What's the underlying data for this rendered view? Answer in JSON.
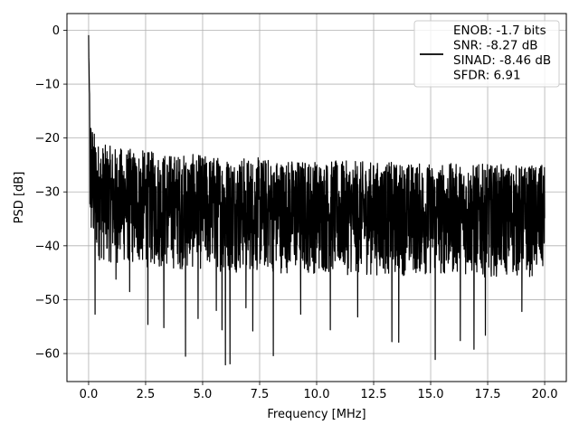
{
  "chart_data": {
    "type": "line",
    "xlabel": "Frequency [MHz]",
    "ylabel": "PSD [dB]",
    "xlim": [
      -0.95,
      20.95
    ],
    "ylim": [
      -65.2,
      3.1
    ],
    "xticks": [
      0.0,
      2.5,
      5.0,
      7.5,
      10.0,
      12.5,
      15.0,
      17.5,
      20.0
    ],
    "xtick_labels": [
      "0.0",
      "2.5",
      "5.0",
      "7.5",
      "10.0",
      "12.5",
      "15.0",
      "17.5",
      "20.0"
    ],
    "yticks": [
      0,
      -10,
      -20,
      -30,
      -40,
      -50,
      -60
    ],
    "ytick_labels": [
      "0",
      "−10",
      "−20",
      "−30",
      "−40",
      "−50",
      "−60"
    ],
    "grid": true,
    "line_color": "#000000",
    "legend": {
      "placement": "top-right",
      "entries": [
        "ENOB: -1.7 bits",
        "SNR: -8.27 dB",
        "SINAD: -8.46 dB",
        "SFDR: 6.91"
      ]
    },
    "series": [
      {
        "x_range": [
          0,
          20
        ],
        "x": [
          0.0,
          0.02,
          0.05,
          0.1,
          0.15,
          0.2,
          0.3,
          0.4,
          0.5,
          1.0,
          1.5,
          2.0,
          2.5,
          3.0,
          4.0,
          5.0,
          6.0,
          7.0,
          8.0,
          9.0,
          10.0,
          11.0,
          12.0,
          13.0,
          14.0,
          15.0,
          16.0,
          17.0,
          18.0,
          19.0,
          20.0
        ],
        "peak": [
          0.0,
          -5.0,
          -13.0,
          -15.5,
          -17.0,
          -18.0,
          -19.5,
          -20.5,
          -21.0,
          -21.5,
          -21.8,
          -22.0,
          -22.3,
          -22.6,
          -22.9,
          -23.1,
          -23.3,
          -23.5,
          -23.7,
          -23.9,
          -24.0,
          -24.2,
          -24.3,
          -24.4,
          -24.5,
          -24.6,
          -24.7,
          -24.8,
          -24.9,
          -25.0,
          -25.0
        ],
        "floor": [
          -24.0,
          -33.0,
          -38.0,
          -40.0,
          -41.0,
          -41.5,
          -42.0,
          -42.5,
          -43.0,
          -43.3,
          -43.6,
          -43.9,
          -44.1,
          -44.3,
          -44.5,
          -44.7,
          -44.9,
          -45.0,
          -45.1,
          -45.2,
          -45.3,
          -45.4,
          -45.5,
          -45.6,
          -45.6,
          -45.7,
          -45.7,
          -45.8,
          -45.8,
          -45.9,
          -45.9
        ],
        "spikes": [
          {
            "x": 0.28,
            "y": -52.7
          },
          {
            "x": 1.2,
            "y": -46.2
          },
          {
            "x": 1.8,
            "y": -48.5
          },
          {
            "x": 2.6,
            "y": -54.6
          },
          {
            "x": 3.3,
            "y": -55.2
          },
          {
            "x": 4.25,
            "y": -60.5
          },
          {
            "x": 4.8,
            "y": -53.5
          },
          {
            "x": 5.6,
            "y": -52.0
          },
          {
            "x": 5.85,
            "y": -55.6
          },
          {
            "x": 6.0,
            "y": -62.1
          },
          {
            "x": 6.2,
            "y": -61.9
          },
          {
            "x": 6.9,
            "y": -51.5
          },
          {
            "x": 7.2,
            "y": -55.8
          },
          {
            "x": 8.1,
            "y": -60.4
          },
          {
            "x": 9.3,
            "y": -52.7
          },
          {
            "x": 10.6,
            "y": -55.6
          },
          {
            "x": 11.8,
            "y": -53.2
          },
          {
            "x": 13.3,
            "y": -57.8
          },
          {
            "x": 13.6,
            "y": -57.9
          },
          {
            "x": 15.2,
            "y": -61.1
          },
          {
            "x": 16.3,
            "y": -57.6
          },
          {
            "x": 16.9,
            "y": -59.2
          },
          {
            "x": 17.4,
            "y": -56.6
          },
          {
            "x": 19.0,
            "y": -52.2
          }
        ]
      }
    ]
  }
}
